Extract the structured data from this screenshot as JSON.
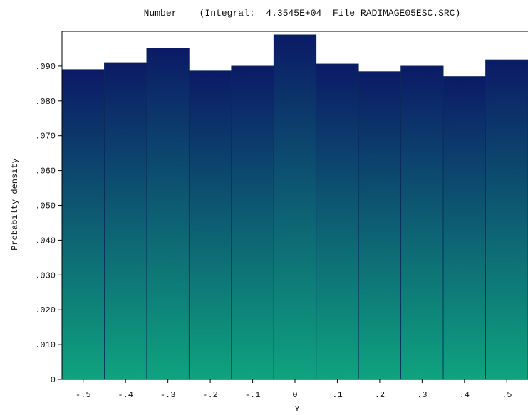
{
  "chart_data": {
    "type": "bar",
    "title": "Number    (Integral:  4.3545E+04  File RADIMAGE05ESC.SRC)",
    "xlabel": "Y",
    "ylabel": "Probabilty density",
    "x_centers": [
      -0.5,
      -0.4,
      -0.3,
      -0.2,
      -0.1,
      0,
      0.1,
      0.2,
      0.3,
      0.4,
      0.5
    ],
    "bin_width": 0.1,
    "values": [
      0.089,
      0.091,
      0.0952,
      0.0886,
      0.09,
      0.099,
      0.0906,
      0.0884,
      0.09,
      0.087,
      0.0918
    ],
    "xlim": [
      -0.55,
      0.55
    ],
    "ylim": [
      0,
      0.1
    ],
    "x_ticks": [
      -0.5,
      -0.4,
      -0.3,
      -0.2,
      -0.1,
      0,
      0.1,
      0.2,
      0.3,
      0.4,
      0.5
    ],
    "x_tick_labels": [
      "-.5",
      "-.4",
      "-.3",
      "-.2",
      "-.1",
      "0",
      ".1",
      ".2",
      ".3",
      ".4",
      ".5"
    ],
    "y_ticks": [
      0,
      0.01,
      0.02,
      0.03,
      0.04,
      0.05,
      0.06,
      0.07,
      0.08,
      0.09
    ],
    "y_tick_labels": [
      "0",
      ".010",
      ".020",
      ".030",
      ".040",
      ".050",
      ".060",
      ".070",
      ".080",
      ".090"
    ],
    "grid": false,
    "colors": {
      "bar_top": "#0b1a66",
      "bar_bottom": "#0fa37f",
      "bar_edge": "#0a2a5a",
      "axis": "#000000"
    }
  }
}
